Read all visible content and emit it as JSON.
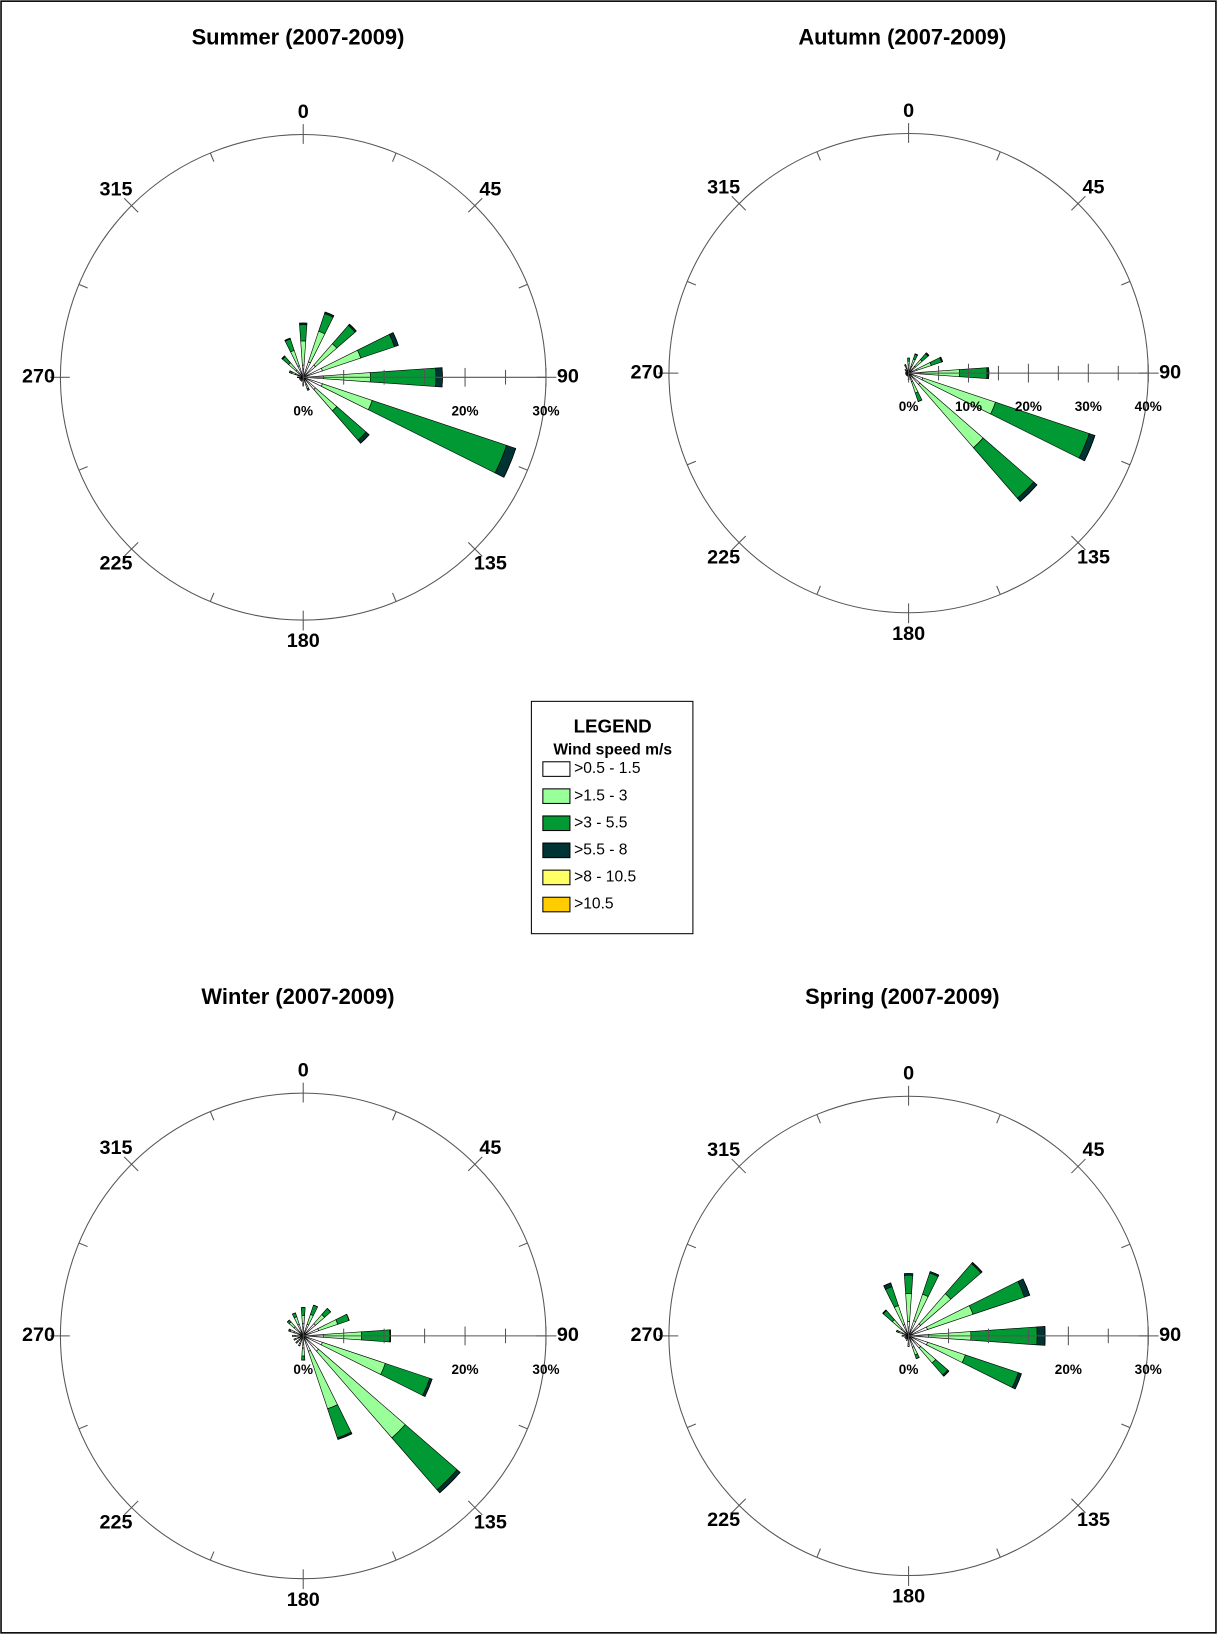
{
  "legend": {
    "title": "LEGEND",
    "subtitle": "Wind speed m/s",
    "items": [
      {
        "name": ">0.5 - 1.5",
        "color": "#ffffff"
      },
      {
        "name": ">1.5 - 3",
        "color": "#99ff99"
      },
      {
        "name": ">3 - 5.5",
        "color": "#009933"
      },
      {
        "name": ">5.5 - 8",
        "color": "#003333"
      },
      {
        "name": ">8 - 10.5",
        "color": "#ffff66"
      },
      {
        "name": ">10.5",
        "color": "#ffcc00"
      }
    ]
  },
  "chart_data": [
    {
      "type": "windrose",
      "title": "Summer (2007-2009)",
      "x": [
        0,
        22.5,
        45,
        67.5,
        90,
        112.5,
        135,
        157.5,
        180,
        202.5,
        225,
        247.5,
        270,
        292.5,
        315,
        337.5
      ],
      "angle_ticks": [
        0,
        45,
        90,
        135,
        180,
        225,
        270,
        315
      ],
      "rlim": [
        0,
        30
      ],
      "rticks": [
        {
          "value": 0,
          "label": "0%"
        },
        {
          "value": 20,
          "label": "20%"
        },
        {
          "value": 30,
          "label": "30%"
        }
      ],
      "rminor_ticks": [
        5,
        10,
        15,
        25
      ],
      "series": [
        {
          "values": [
            1.5,
            2,
            2,
            2.5,
            2.5,
            2.5,
            2,
            1,
            0.8,
            0.5,
            0.5,
            0.5,
            0.6,
            1,
            1.2,
            1.5
          ]
        },
        {
          "values": [
            3,
            4,
            3.5,
            5,
            5.8,
            6.5,
            3.5,
            0.5,
            0.2,
            0,
            0,
            0,
            0.1,
            0.5,
            1.2,
            2
          ]
        },
        {
          "values": [
            2,
            2.3,
            3,
            4.4,
            8.1,
            17.5,
            4.8,
            0.2,
            0,
            0,
            0,
            0,
            0,
            0.3,
            1,
            1.5
          ]
        },
        {
          "values": [
            0.2,
            0.2,
            0.2,
            0.5,
            0.8,
            1.2,
            0.5,
            0,
            0,
            0,
            0,
            0,
            0,
            0,
            0.1,
            0.1
          ]
        },
        {
          "values": [
            0,
            0,
            0,
            0,
            0,
            0,
            0,
            0,
            0,
            0,
            0,
            0,
            0,
            0,
            0,
            0
          ]
        },
        {
          "values": [
            0,
            0,
            0,
            0,
            0,
            0,
            0,
            0,
            0,
            0,
            0,
            0,
            0,
            0,
            0,
            0
          ]
        }
      ]
    },
    {
      "type": "windrose",
      "title": "Autumn (2007-2009)",
      "x": [
        0,
        22.5,
        45,
        67.5,
        90,
        112.5,
        135,
        157.5,
        180,
        202.5,
        225,
        247.5,
        270,
        292.5,
        315,
        337.5
      ],
      "angle_ticks": [
        0,
        45,
        90,
        135,
        180,
        225,
        270,
        315
      ],
      "rlim": [
        0,
        40
      ],
      "rticks": [
        {
          "value": 0,
          "label": "0%"
        },
        {
          "value": 10,
          "label": "10%"
        },
        {
          "value": 20,
          "label": "20%"
        },
        {
          "value": 30,
          "label": "30%"
        },
        {
          "value": 40,
          "label": "40%"
        }
      ],
      "rminor_ticks": [
        5,
        15,
        25,
        35
      ],
      "series": [
        {
          "values": [
            1,
            1.2,
            1.5,
            1.5,
            2,
            2.5,
            2.5,
            1.5,
            0.8,
            0.5,
            0.5,
            0.5,
            0.5,
            0.5,
            0.6,
            0.8
          ]
        },
        {
          "values": [
            1,
            1.3,
            1.5,
            2.5,
            6.5,
            12.8,
            14,
            2,
            0.3,
            0,
            0,
            0,
            0,
            0,
            0.2,
            0.5
          ]
        },
        {
          "values": [
            0.5,
            0.8,
            1.3,
            1.8,
            4.6,
            16.5,
            11.2,
            1.5,
            0,
            0,
            0,
            0,
            0,
            0,
            0,
            0.2
          ]
        },
        {
          "values": [
            0,
            0.1,
            0.2,
            0.2,
            0.3,
            1,
            0.7,
            0,
            0,
            0,
            0,
            0,
            0,
            0,
            0,
            0
          ]
        },
        {
          "values": [
            0,
            0,
            0,
            0,
            0,
            0,
            0,
            0,
            0,
            0,
            0,
            0,
            0,
            0,
            0,
            0
          ]
        },
        {
          "values": [
            0,
            0,
            0,
            0,
            0,
            0,
            0,
            0,
            0,
            0,
            0,
            0,
            0,
            0,
            0,
            0
          ]
        }
      ]
    },
    {
      "type": "windrose",
      "title": "Winter (2007-2009)",
      "x": [
        0,
        22.5,
        45,
        67.5,
        90,
        112.5,
        135,
        157.5,
        180,
        202.5,
        225,
        247.5,
        270,
        292.5,
        315,
        337.5
      ],
      "angle_ticks": [
        0,
        45,
        90,
        135,
        180,
        225,
        270,
        315
      ],
      "rlim": [
        0,
        30
      ],
      "rticks": [
        {
          "value": 0,
          "label": "0%"
        },
        {
          "value": 20,
          "label": "20%"
        },
        {
          "value": 30,
          "label": "30%"
        }
      ],
      "rminor_ticks": [
        5,
        10,
        15,
        25
      ],
      "series": [
        {
          "values": [
            1.5,
            1.5,
            2,
            2,
            2.5,
            2.5,
            2.5,
            2,
            1.5,
            1,
            1,
            1,
            1,
            1.2,
            1.5,
            1.5
          ]
        },
        {
          "values": [
            1,
            1.3,
            1.5,
            2.5,
            4.7,
            8.2,
            14.2,
            7.5,
            1,
            0.3,
            0.2,
            0.2,
            0.3,
            0.5,
            0.8,
            1
          ]
        },
        {
          "values": [
            1,
            1.2,
            1,
            1.5,
            3.5,
            5.8,
            8.5,
            3.8,
            0.5,
            0,
            0,
            0,
            0,
            0.2,
            0.3,
            0.5
          ]
        },
        {
          "values": [
            0,
            0,
            0,
            0,
            0.1,
            0.3,
            0.5,
            0.2,
            0,
            0,
            0,
            0,
            0,
            0,
            0,
            0
          ]
        },
        {
          "values": [
            0,
            0,
            0,
            0,
            0,
            0,
            0,
            0,
            0,
            0,
            0,
            0,
            0,
            0,
            0,
            0
          ]
        },
        {
          "values": [
            0,
            0,
            0,
            0,
            0,
            0,
            0,
            0,
            0,
            0,
            0,
            0,
            0,
            0,
            0,
            0
          ]
        }
      ]
    },
    {
      "type": "windrose",
      "title": "Spring (2007-2009)",
      "x": [
        0,
        22.5,
        45,
        67.5,
        90,
        112.5,
        135,
        157.5,
        180,
        202.5,
        225,
        247.5,
        270,
        292.5,
        315,
        337.5
      ],
      "angle_ticks": [
        0,
        45,
        90,
        135,
        180,
        225,
        270,
        315
      ],
      "rlim": [
        0,
        30
      ],
      "rticks": [
        {
          "value": 0,
          "label": "0%"
        },
        {
          "value": 20,
          "label": "20%"
        },
        {
          "value": 30,
          "label": "30%"
        }
      ],
      "rminor_ticks": [
        5,
        10,
        15,
        25
      ],
      "series": [
        {
          "values": [
            1.8,
            2,
            2,
            2.5,
            2.5,
            2.5,
            2,
            1.5,
            1,
            0.6,
            0.5,
            0.5,
            0.6,
            0.8,
            1.2,
            1.5
          ]
        },
        {
          "values": [
            3.5,
            3.5,
            5,
            6,
            5.3,
            5,
            2.5,
            1,
            0.3,
            0,
            0,
            0,
            0.2,
            0.5,
            1.5,
            2.5
          ]
        },
        {
          "values": [
            2.3,
            2.8,
            5,
            6.8,
            8.3,
            7,
            2,
            0.5,
            0,
            0,
            0,
            0,
            0,
            0.3,
            1.5,
            2.5
          ]
        },
        {
          "values": [
            0.2,
            0.2,
            0.2,
            0.7,
            1,
            0.4,
            0.2,
            0,
            0,
            0,
            0,
            0,
            0,
            0,
            0.1,
            0.5
          ]
        },
        {
          "values": [
            0,
            0,
            0,
            0,
            0,
            0,
            0,
            0,
            0,
            0,
            0,
            0,
            0,
            0,
            0,
            0
          ]
        },
        {
          "values": [
            0,
            0,
            0,
            0,
            0,
            0,
            0,
            0,
            0,
            0,
            0,
            0,
            0,
            0,
            0,
            0
          ]
        }
      ]
    }
  ]
}
